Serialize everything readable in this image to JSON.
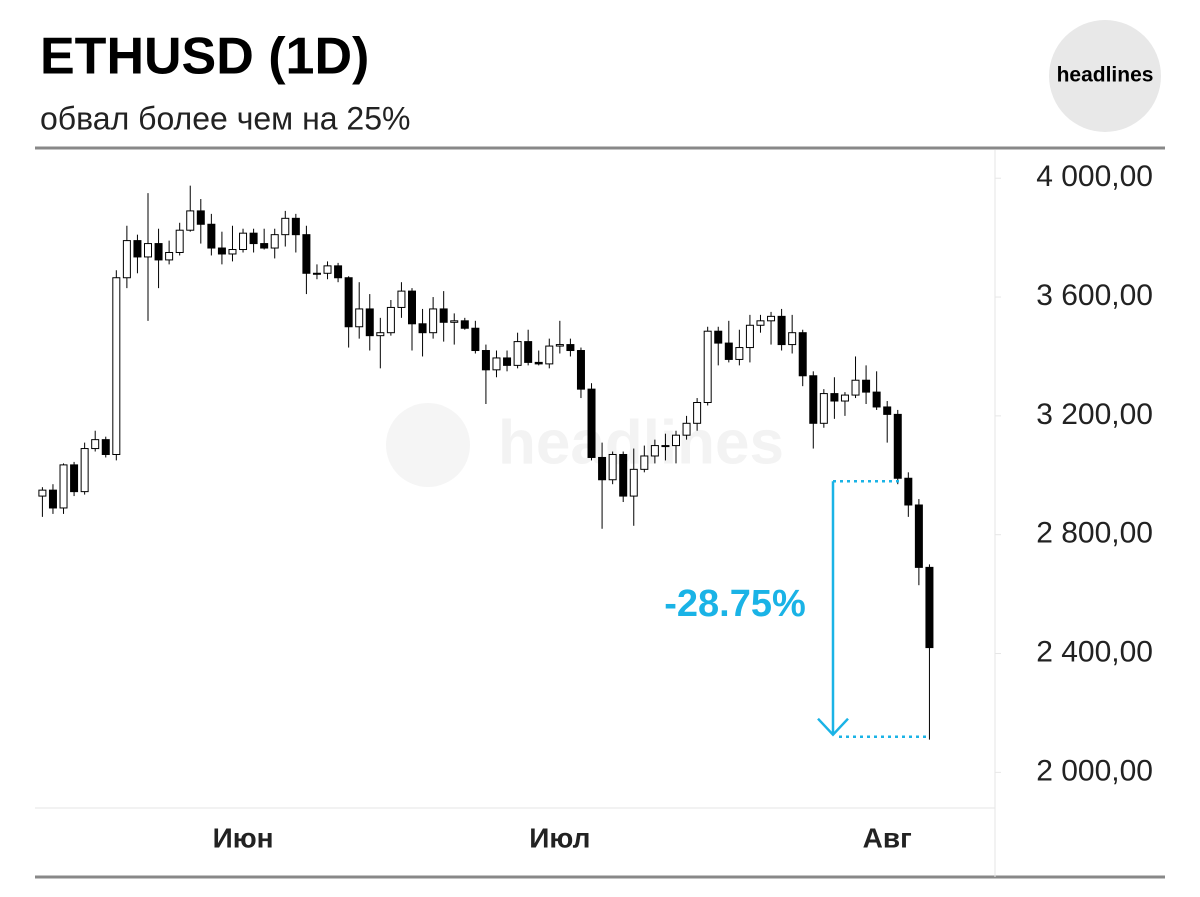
{
  "chart_data": {
    "type": "candlestick",
    "title": "ETHUSD (1D)",
    "subtitle": "обвал более чем на 25%",
    "brand": "headlines",
    "watermark": "headlines",
    "categories": [
      null,
      null,
      null,
      null,
      null,
      null,
      null,
      null,
      null,
      null,
      null,
      null,
      null,
      null,
      null,
      null,
      null,
      null,
      null,
      "Июн",
      null,
      null,
      null,
      null,
      null,
      null,
      null,
      null,
      null,
      null,
      null,
      null,
      null,
      null,
      null,
      null,
      null,
      null,
      null,
      null,
      null,
      null,
      null,
      null,
      null,
      null,
      null,
      null,
      null,
      "Июл",
      null,
      null,
      null,
      null,
      null,
      null,
      null,
      null,
      null,
      null,
      null,
      null,
      null,
      null,
      null,
      null,
      null,
      null,
      null,
      null,
      null,
      null,
      null,
      null,
      null,
      null,
      null,
      null,
      null,
      null,
      "Авг",
      null,
      null,
      null,
      null
    ],
    "open": [
      2930,
      2950,
      2890,
      3035,
      2945,
      3090,
      3120,
      3070,
      3665,
      3790,
      3735,
      3780,
      3725,
      3750,
      3825,
      3890,
      3845,
      3765,
      3745,
      3760,
      3815,
      3780,
      3765,
      3810,
      3865,
      3810,
      3680,
      3680,
      3705,
      3665,
      3500,
      3560,
      3470,
      3480,
      3565,
      3620,
      3510,
      3480,
      3560,
      3515,
      3520,
      3495,
      3420,
      3355,
      3395,
      3370,
      3450,
      3380,
      3375,
      3435,
      3440,
      3420,
      3290,
      3060,
      2985,
      3070,
      2930,
      3020,
      3065,
      3100,
      3100,
      3135,
      3175,
      3245,
      3485,
      3445,
      3390,
      3430,
      3505,
      3520,
      3535,
      3440,
      3480,
      3335,
      3175,
      3275,
      3250,
      3270,
      3320,
      3280,
      3230,
      3205,
      2990,
      2900,
      2690
    ],
    "high": [
      2960,
      2970,
      3040,
      3045,
      3110,
      3150,
      3130,
      3690,
      3840,
      3810,
      3950,
      3830,
      3790,
      3850,
      3975,
      3930,
      3880,
      3820,
      3840,
      3830,
      3830,
      3830,
      3830,
      3890,
      3880,
      3840,
      3710,
      3720,
      3715,
      3670,
      3650,
      3610,
      3530,
      3590,
      3650,
      3630,
      3560,
      3600,
      3620,
      3545,
      3530,
      3520,
      3440,
      3420,
      3420,
      3480,
      3490,
      3420,
      3460,
      3520,
      3460,
      3430,
      3310,
      3110,
      3080,
      3080,
      3090,
      3100,
      3120,
      3140,
      3150,
      3200,
      3260,
      3500,
      3500,
      3520,
      3490,
      3540,
      3540,
      3550,
      3560,
      3540,
      3490,
      3350,
      3290,
      3330,
      3280,
      3400,
      3370,
      3350,
      3250,
      3220,
      3010,
      2920,
      2700
    ],
    "low": [
      2860,
      2870,
      2870,
      2930,
      2935,
      3080,
      3060,
      3050,
      3630,
      3680,
      3520,
      3630,
      3710,
      3740,
      3820,
      3780,
      3740,
      3710,
      3720,
      3750,
      3750,
      3760,
      3730,
      3770,
      3750,
      3610,
      3660,
      3660,
      3650,
      3430,
      3460,
      3420,
      3360,
      3470,
      3530,
      3420,
      3400,
      3460,
      3450,
      3440,
      3490,
      3410,
      3240,
      3330,
      3350,
      3360,
      3370,
      3370,
      3360,
      3410,
      3400,
      3260,
      3050,
      2820,
      2970,
      2910,
      2830,
      3010,
      3040,
      3050,
      3040,
      3120,
      3150,
      3235,
      3370,
      3380,
      3370,
      3380,
      3480,
      3440,
      3420,
      3410,
      3300,
      3090,
      3160,
      3190,
      3200,
      3260,
      3240,
      3220,
      3110,
      2970,
      2860,
      2630,
      2110
    ],
    "close": [
      2950,
      2890,
      3035,
      2945,
      3090,
      3120,
      3070,
      3665,
      3790,
      3735,
      3780,
      3725,
      3750,
      3825,
      3890,
      3845,
      3765,
      3745,
      3760,
      3815,
      3780,
      3765,
      3810,
      3865,
      3810,
      3680,
      3680,
      3705,
      3665,
      3500,
      3560,
      3470,
      3480,
      3565,
      3620,
      3510,
      3480,
      3560,
      3515,
      3520,
      3495,
      3420,
      3355,
      3395,
      3370,
      3450,
      3380,
      3375,
      3435,
      3440,
      3420,
      3290,
      3060,
      2985,
      3070,
      2930,
      3020,
      3065,
      3100,
      3100,
      3135,
      3175,
      3245,
      3485,
      3445,
      3390,
      3430,
      3505,
      3520,
      3535,
      3440,
      3480,
      3335,
      3175,
      3275,
      3250,
      3270,
      3320,
      3280,
      3230,
      3205,
      2990,
      2900,
      2690,
      2420
    ],
    "up_color": "#ffffff",
    "down_color": "#000000",
    "ylim": [
      1880,
      4095
    ],
    "yticks": [
      {
        "value": 2000,
        "label": "2 000,00"
      },
      {
        "value": 2400,
        "label": "2 400,00"
      },
      {
        "value": 2800,
        "label": "2 800,00"
      },
      {
        "value": 3200,
        "label": "3 200,00"
      },
      {
        "value": 3600,
        "label": "3 600,00"
      },
      {
        "value": 4000,
        "label": "4 000,00"
      }
    ],
    "grid": false,
    "annotation": {
      "text": "-28.75%",
      "from": 2980,
      "to": 2120,
      "color": "#1ab3e6"
    }
  }
}
